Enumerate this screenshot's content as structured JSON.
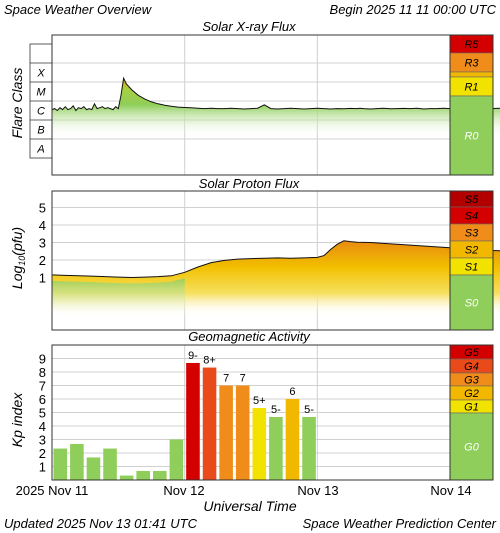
{
  "header": {
    "title": "Space Weather Overview",
    "begin": "Begin 2025 11 11 00:00 UTC"
  },
  "footer": {
    "updated": "Updated 2025 Nov 13 01:41 UTC",
    "credit": "Space Weather Prediction Center"
  },
  "colors": {
    "green": "#8fce5a",
    "yellow": "#f2e200",
    "gold": "#f2b800",
    "orange": "#f08c1a",
    "red_orange": "#e84a1a",
    "red": "#d40000",
    "dark_red": "#b20000",
    "grid": "#d0d0d0"
  },
  "chart_data": [
    {
      "type": "area",
      "title": "Solar X-ray Flux",
      "ylabel": "Flare Class",
      "y_scale": "log",
      "y_ticks": [
        "A",
        "B",
        "C",
        "M",
        "X"
      ],
      "ylim_decade": [
        0,
        6
      ],
      "x": [
        0.0,
        0.02,
        0.04,
        0.06,
        0.08,
        0.1,
        0.12,
        0.14,
        0.16,
        0.18,
        0.2,
        0.22,
        0.24,
        0.26,
        0.28,
        0.3,
        0.32,
        0.34,
        0.36,
        0.38,
        0.4,
        0.42,
        0.44,
        0.46,
        0.48,
        0.5,
        0.52,
        0.54,
        0.56,
        0.6,
        0.65,
        0.7,
        0.75,
        0.8,
        0.85,
        0.9,
        0.95,
        1.0,
        1.05,
        1.1,
        1.15,
        1.2,
        1.25,
        1.3,
        1.35,
        1.4,
        1.45,
        1.5,
        1.55,
        1.6,
        1.65,
        1.7,
        1.75,
        1.8,
        1.85,
        1.9,
        1.95,
        2.0,
        2.05,
        2.1,
        2.15,
        2.2,
        2.25,
        2.3,
        2.32,
        2.35,
        2.4,
        2.45,
        2.5,
        2.55,
        2.6,
        2.65,
        2.7,
        2.75,
        2.78,
        2.8,
        2.85,
        2.9,
        2.95,
        3.0,
        3.05,
        3.1,
        3.15,
        3.2,
        3.25,
        3.3,
        3.35,
        3.4,
        3.45,
        3.5,
        3.55,
        3.6,
        3.62,
        3.65,
        3.7,
        3.75,
        3.8,
        3.85,
        3.9,
        3.92,
        3.94,
        3.96,
        4.0,
        4.05,
        4.1,
        4.15,
        4.18,
        4.2,
        4.22,
        4.25,
        4.28,
        4.3
      ],
      "values": [
        2.55,
        2.6,
        2.5,
        2.65,
        2.55,
        2.7,
        2.55,
        2.6,
        2.75,
        2.5,
        2.65,
        2.6,
        2.7,
        2.55,
        2.6,
        2.55,
        2.85,
        2.6,
        2.65,
        2.7,
        2.6,
        2.65,
        2.6,
        2.55,
        2.7,
        2.6,
        3.3,
        4.2,
        3.9,
        3.6,
        3.3,
        3.1,
        2.95,
        2.85,
        2.78,
        2.72,
        2.68,
        2.66,
        2.64,
        2.62,
        2.6,
        2.62,
        2.6,
        2.6,
        2.62,
        2.6,
        2.58,
        2.6,
        2.62,
        2.8,
        2.6,
        2.58,
        2.6,
        2.62,
        2.6,
        2.58,
        2.6,
        2.62,
        2.6,
        2.58,
        2.6,
        2.59,
        2.61,
        2.6,
        2.62,
        2.6,
        2.58,
        2.6,
        2.62,
        2.59,
        2.6,
        2.61,
        2.6,
        2.62,
        2.6,
        2.58,
        2.6,
        2.6,
        2.62,
        2.6,
        2.62,
        2.6,
        2.58,
        2.6,
        2.62,
        2.6,
        2.61,
        2.62,
        2.63,
        2.66,
        2.7,
        2.75,
        2.95,
        2.82,
        2.75,
        2.72,
        2.7,
        2.68,
        2.66,
        2.75,
        2.65,
        2.68,
        2.7,
        2.66,
        2.68,
        2.72,
        2.8,
        2.68,
        2.7,
        2.66,
        2.9,
        2.65
      ],
      "scale_labels": [
        "R5",
        "R3",
        "R1",
        "R0"
      ]
    },
    {
      "type": "area",
      "title": "Solar Proton Flux",
      "ylabel_main": "Log",
      "ylabel_sub": "10",
      "ylabel_tail": "(pfu)",
      "ylim": [
        0,
        6
      ],
      "y_ticks": [
        "1",
        "2",
        "3",
        "4",
        "5"
      ],
      "x": [
        0.0,
        0.1,
        0.2,
        0.3,
        0.4,
        0.5,
        0.6,
        0.7,
        0.8,
        0.9,
        1.0,
        1.1,
        1.2,
        1.3,
        1.4,
        1.5,
        1.6,
        1.7,
        1.8,
        1.9,
        2.0,
        2.05,
        2.1,
        2.15,
        2.2,
        2.25,
        2.3,
        2.4,
        2.5,
        2.6,
        2.7,
        2.8,
        2.9,
        3.0,
        3.1,
        3.2,
        3.3,
        3.4,
        3.5,
        3.6,
        3.65,
        3.7,
        3.75,
        3.8,
        3.85,
        3.9,
        3.95,
        4.0,
        4.05,
        4.1,
        4.2,
        4.3
      ],
      "values": [
        1.15,
        1.12,
        1.1,
        1.08,
        1.05,
        1.02,
        1.0,
        1.02,
        1.05,
        1.1,
        1.3,
        1.6,
        1.85,
        1.98,
        2.05,
        2.08,
        2.1,
        2.12,
        2.1,
        2.12,
        2.15,
        2.25,
        2.6,
        2.9,
        3.1,
        3.05,
        3.02,
        3.0,
        2.95,
        2.9,
        2.85,
        2.8,
        2.75,
        2.7,
        2.65,
        2.6,
        2.55,
        2.52,
        2.5,
        2.55,
        2.6,
        2.8,
        2.6,
        2.65,
        2.5,
        2.4,
        2.3,
        2.2,
        2.05,
        2.0,
        1.95,
        1.92
      ],
      "scale_labels": [
        "S5",
        "S4",
        "S3",
        "S2",
        "S1",
        "S0"
      ]
    },
    {
      "type": "bar",
      "title": "Geomagnetic Activity",
      "ylabel": "Kp index",
      "ylim": [
        0,
        10
      ],
      "y_ticks": [
        "1",
        "2",
        "3",
        "4",
        "5",
        "6",
        "7",
        "8",
        "9"
      ],
      "bars": [
        {
          "kp": 2.33,
          "label": ""
        },
        {
          "kp": 2.67,
          "label": ""
        },
        {
          "kp": 1.67,
          "label": ""
        },
        {
          "kp": 2.33,
          "label": ""
        },
        {
          "kp": 0.33,
          "label": ""
        },
        {
          "kp": 0.67,
          "label": ""
        },
        {
          "kp": 0.67,
          "label": ""
        },
        {
          "kp": 3.0,
          "label": ""
        },
        {
          "kp": 8.67,
          "label": "9-"
        },
        {
          "kp": 8.33,
          "label": "8+"
        },
        {
          "kp": 7.0,
          "label": "7"
        },
        {
          "kp": 7.0,
          "label": "7"
        },
        {
          "kp": 5.33,
          "label": "5+"
        },
        {
          "kp": 4.67,
          "label": "5-"
        },
        {
          "kp": 6.0,
          "label": "6"
        },
        {
          "kp": 4.67,
          "label": "5-"
        }
      ],
      "scale_labels": [
        "G5",
        "G4",
        "G3",
        "G2",
        "G1",
        "G0"
      ]
    }
  ],
  "x_axis": {
    "title": "Universal Time",
    "tick_labels": [
      "2025 Nov 11",
      "Nov 12",
      "Nov 13",
      "Nov 14"
    ]
  }
}
